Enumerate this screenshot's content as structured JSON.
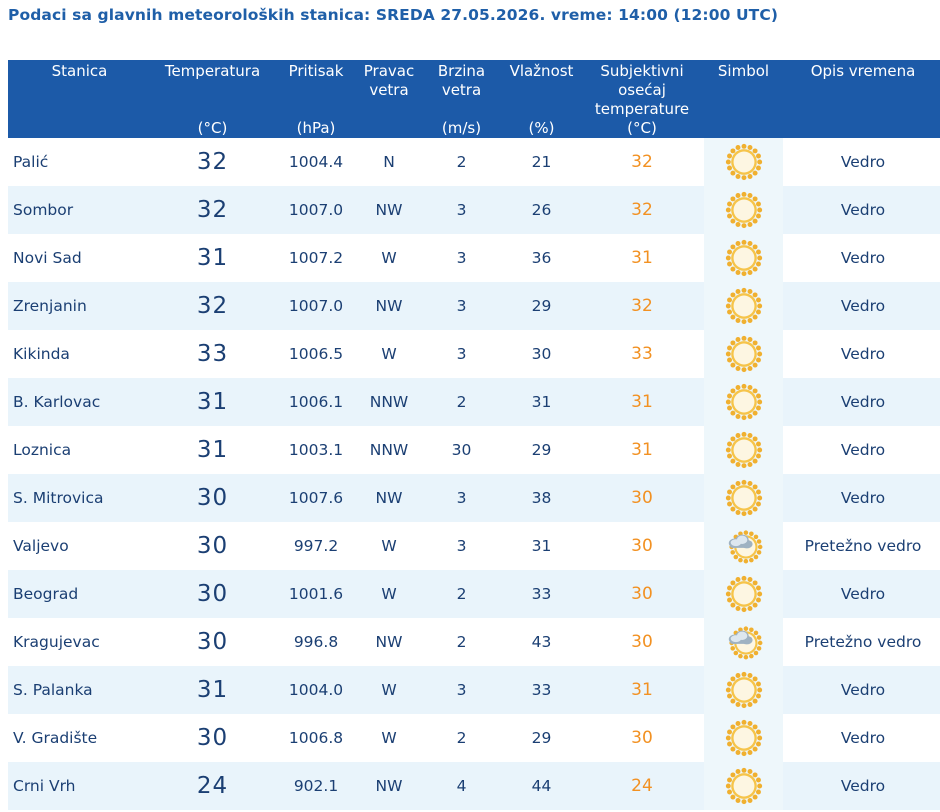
{
  "header": {
    "title": "Podaci sa glavnih meteoroloških stanica:  SREDA 27.05.2026.  vreme: 14:00 (12:00 UTC)"
  },
  "colors": {
    "header_bg": "#1c5aa8",
    "title_text": "#1f5fa8",
    "value_text": "#1b3f73",
    "feel_text": "#f29122",
    "stripe_bg": "#e9f4fb"
  },
  "table": {
    "columns": [
      {
        "label": "Stanica",
        "unit": ""
      },
      {
        "label": "Temperatura",
        "unit": "(°C)"
      },
      {
        "label": "Pritisak",
        "unit": "(hPa)"
      },
      {
        "label": "Pravac vetra",
        "unit": ""
      },
      {
        "label": "Brzina vetra",
        "unit": "(m/s)"
      },
      {
        "label": "Vlažnost",
        "unit": "(%)"
      },
      {
        "label": "Subjektivni osećaj temperature",
        "unit": "(°C)"
      },
      {
        "label": "Simbol",
        "unit": ""
      },
      {
        "label": "Opis vremena",
        "unit": ""
      }
    ],
    "rows": [
      {
        "station": "Palić",
        "temp": "32",
        "pressure": "1004.4",
        "wind_dir": "N",
        "wind_speed": "2",
        "humidity": "21",
        "feel": "32",
        "icon": "sun-icon",
        "description": "Vedro"
      },
      {
        "station": "Sombor",
        "temp": "32",
        "pressure": "1007.0",
        "wind_dir": "NW",
        "wind_speed": "3",
        "humidity": "26",
        "feel": "32",
        "icon": "sun-icon",
        "description": "Vedro"
      },
      {
        "station": "Novi Sad",
        "temp": "31",
        "pressure": "1007.2",
        "wind_dir": "W",
        "wind_speed": "3",
        "humidity": "36",
        "feel": "31",
        "icon": "sun-icon",
        "description": "Vedro"
      },
      {
        "station": "Zrenjanin",
        "temp": "32",
        "pressure": "1007.0",
        "wind_dir": "NW",
        "wind_speed": "3",
        "humidity": "29",
        "feel": "32",
        "icon": "sun-icon",
        "description": "Vedro"
      },
      {
        "station": "Kikinda",
        "temp": "33",
        "pressure": "1006.5",
        "wind_dir": "W",
        "wind_speed": "3",
        "humidity": "30",
        "feel": "33",
        "icon": "sun-icon",
        "description": "Vedro"
      },
      {
        "station": "B. Karlovac",
        "temp": "31",
        "pressure": "1006.1",
        "wind_dir": "NNW",
        "wind_speed": "2",
        "humidity": "31",
        "feel": "31",
        "icon": "sun-icon",
        "description": "Vedro"
      },
      {
        "station": "Loznica",
        "temp": "31",
        "pressure": "1003.1",
        "wind_dir": "NNW",
        "wind_speed": "30",
        "humidity": "29",
        "feel": "31",
        "icon": "sun-icon",
        "description": "Vedro"
      },
      {
        "station": "S. Mitrovica",
        "temp": "30",
        "pressure": "1007.6",
        "wind_dir": "NW",
        "wind_speed": "3",
        "humidity": "38",
        "feel": "30",
        "icon": "sun-icon",
        "description": "Vedro"
      },
      {
        "station": "Valjevo",
        "temp": "30",
        "pressure": "997.2",
        "wind_dir": "W",
        "wind_speed": "3",
        "humidity": "31",
        "feel": "30",
        "icon": "sun-cloud-icon",
        "description": "Pretežno vedro"
      },
      {
        "station": "Beograd",
        "temp": "30",
        "pressure": "1001.6",
        "wind_dir": "W",
        "wind_speed": "2",
        "humidity": "33",
        "feel": "30",
        "icon": "sun-icon",
        "description": "Vedro"
      },
      {
        "station": "Kragujevac",
        "temp": "30",
        "pressure": "996.8",
        "wind_dir": "NW",
        "wind_speed": "2",
        "humidity": "43",
        "feel": "30",
        "icon": "sun-cloud-icon",
        "description": "Pretežno vedro"
      },
      {
        "station": "S. Palanka",
        "temp": "31",
        "pressure": "1004.0",
        "wind_dir": "W",
        "wind_speed": "3",
        "humidity": "33",
        "feel": "31",
        "icon": "sun-icon",
        "description": "Vedro"
      },
      {
        "station": "V. Gradište",
        "temp": "30",
        "pressure": "1006.8",
        "wind_dir": "W",
        "wind_speed": "2",
        "humidity": "29",
        "feel": "30",
        "icon": "sun-icon",
        "description": "Vedro"
      },
      {
        "station": "Crni Vrh",
        "temp": "24",
        "pressure": "902.1",
        "wind_dir": "NW",
        "wind_speed": "4",
        "humidity": "44",
        "feel": "24",
        "icon": "sun-icon",
        "description": "Vedro"
      }
    ]
  }
}
